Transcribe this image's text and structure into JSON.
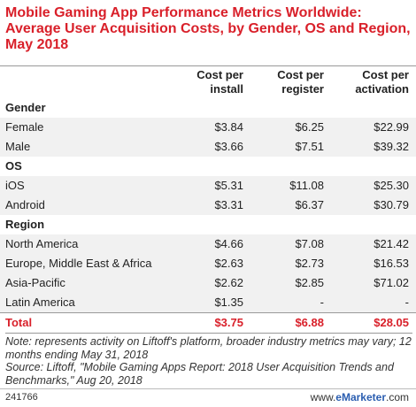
{
  "title": "Mobile Gaming App Performance Metrics Worldwide: Average User Acquisition Costs, by Gender, OS and Region, May 2018",
  "columns": [
    "Cost per install",
    "Cost per register",
    "Cost per activation"
  ],
  "chart_data": {
    "type": "table",
    "title": "Mobile Gaming App Performance Metrics Worldwide: Average User Acquisition Costs, by Gender, OS and Region, May 2018",
    "columns": [
      "Cost per install",
      "Cost per register",
      "Cost per activation"
    ],
    "groups": [
      {
        "name": "Gender",
        "rows": [
          {
            "label": "Female",
            "values": [
              "$3.84",
              "$6.25",
              "$22.99"
            ]
          },
          {
            "label": "Male",
            "values": [
              "$3.66",
              "$7.51",
              "$39.32"
            ]
          }
        ]
      },
      {
        "name": "OS",
        "rows": [
          {
            "label": "iOS",
            "values": [
              "$5.31",
              "$11.08",
              "$25.30"
            ]
          },
          {
            "label": "Android",
            "values": [
              "$3.31",
              "$6.37",
              "$30.79"
            ]
          }
        ]
      },
      {
        "name": "Region",
        "rows": [
          {
            "label": "North America",
            "values": [
              "$4.66",
              "$7.08",
              "$21.42"
            ]
          },
          {
            "label": "Europe, Middle East & Africa",
            "values": [
              "$2.63",
              "$2.73",
              "$16.53"
            ]
          },
          {
            "label": "Asia-Pacific",
            "values": [
              "$2.62",
              "$2.85",
              "$71.02"
            ]
          },
          {
            "label": "Latin America",
            "values": [
              "$1.35",
              "-",
              "-"
            ]
          }
        ]
      }
    ],
    "total": {
      "label": "Total",
      "values": [
        "$3.75",
        "$6.88",
        "$28.05"
      ]
    }
  },
  "notes": "Note: represents activity on Liftoff's platform, broader industry metrics may vary; 12 months ending May 31, 2018",
  "source": "Source: Liftoff, \"Mobile Gaming Apps Report: 2018 User Acquisition Trends and Benchmarks,\" Aug 20, 2018",
  "footer_id": "241766",
  "brand_prefix": "www.",
  "brand_name": "eMarketer",
  "brand_suffix": ".com",
  "accent_color": "#d9202a"
}
